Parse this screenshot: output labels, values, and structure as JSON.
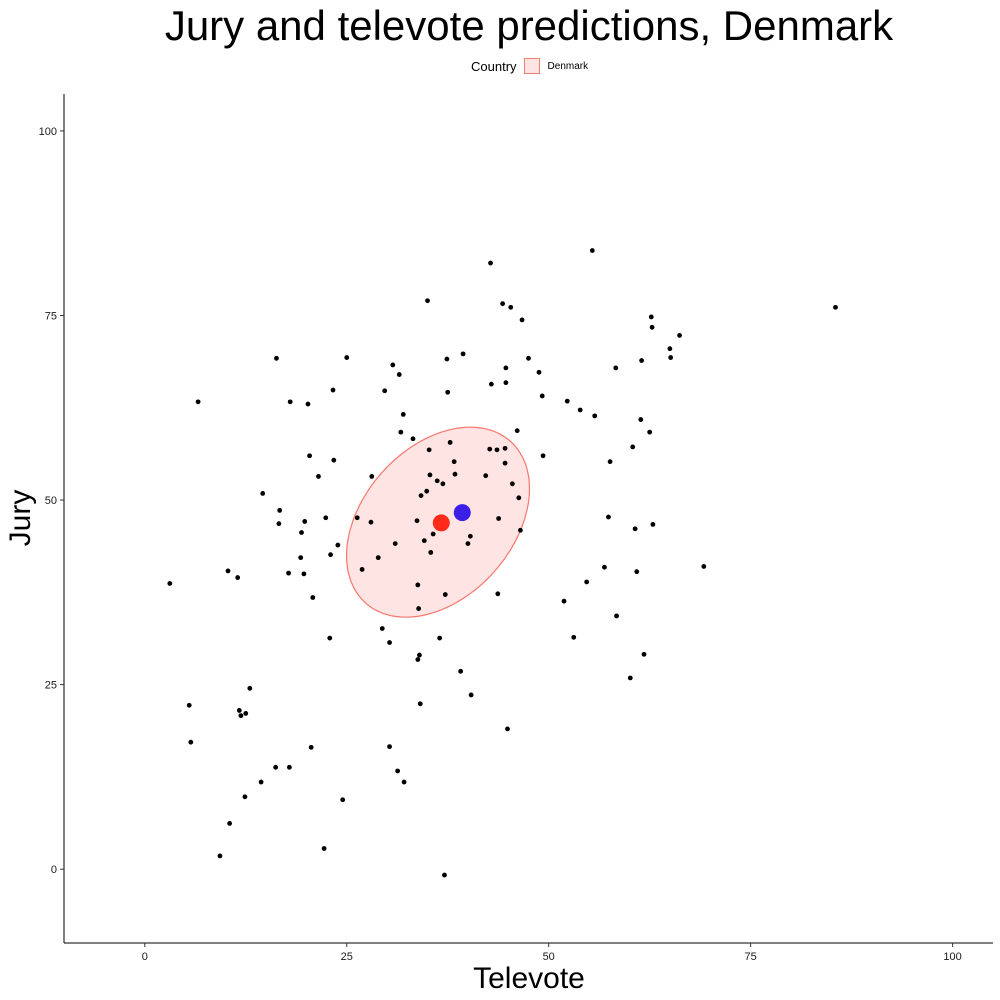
{
  "chart_data": {
    "type": "scatter",
    "title": "Jury and televote predictions, Denmark",
    "xlabel": "Televote",
    "ylabel": "Jury",
    "xlim": [
      -10,
      105
    ],
    "ylim": [
      -10,
      105
    ],
    "xticks": [
      "0",
      "25",
      "50",
      "75",
      "100"
    ],
    "yticks": [
      "0",
      "25",
      "50",
      "75",
      "100"
    ],
    "grid": false,
    "legend": {
      "title": "Country",
      "entries": [
        "Denmark"
      ],
      "position": "top"
    },
    "ellipse": {
      "series": "Denmark",
      "center": [
        36.3,
        47
      ],
      "semi_major": 14.2,
      "semi_minor": 9.6,
      "angle_deg": 55,
      "fill": "#F8766D"
    },
    "markers": [
      {
        "name": "red point",
        "x": 36.7,
        "y": 46.9,
        "color": "#FF2A1A"
      },
      {
        "name": "blue point",
        "x": 39.3,
        "y": 48.3,
        "color": "#3A1FE6"
      }
    ],
    "points": [
      [
        3.1,
        38.7
      ],
      [
        5.5,
        22.2
      ],
      [
        5.7,
        17.2
      ],
      [
        6.6,
        63.3
      ],
      [
        9.3,
        1.8
      ],
      [
        10.3,
        40.4
      ],
      [
        10.5,
        6.2
      ],
      [
        11.5,
        39.5
      ],
      [
        11.7,
        21.5
      ],
      [
        11.9,
        20.8
      ],
      [
        12.4,
        9.8
      ],
      [
        12.5,
        21.1
      ],
      [
        13.0,
        24.5
      ],
      [
        14.4,
        11.8
      ],
      [
        14.6,
        50.9
      ],
      [
        16.2,
        13.8
      ],
      [
        16.3,
        69.2
      ],
      [
        16.6,
        46.8
      ],
      [
        16.7,
        48.6
      ],
      [
        17.8,
        40.1
      ],
      [
        17.9,
        13.8
      ],
      [
        18.0,
        63.3
      ],
      [
        19.3,
        42.2
      ],
      [
        19.4,
        45.6
      ],
      [
        19.7,
        40.0
      ],
      [
        19.8,
        47.1
      ],
      [
        20.2,
        63.0
      ],
      [
        20.4,
        56.0
      ],
      [
        20.6,
        16.5
      ],
      [
        20.8,
        36.8
      ],
      [
        21.5,
        53.2
      ],
      [
        22.2,
        2.8
      ],
      [
        22.4,
        47.6
      ],
      [
        22.9,
        31.3
      ],
      [
        23.0,
        42.6
      ],
      [
        23.3,
        64.9
      ],
      [
        23.4,
        55.4
      ],
      [
        23.9,
        43.9
      ],
      [
        24.5,
        9.4
      ],
      [
        25.0,
        69.3
      ],
      [
        26.3,
        47.6
      ],
      [
        26.9,
        40.6
      ],
      [
        28.0,
        47.0
      ],
      [
        28.1,
        53.2
      ],
      [
        28.9,
        42.2
      ],
      [
        29.4,
        32.6
      ],
      [
        29.7,
        64.8
      ],
      [
        30.3,
        30.7
      ],
      [
        30.3,
        16.6
      ],
      [
        30.7,
        68.3
      ],
      [
        31.0,
        44.1
      ],
      [
        31.3,
        13.3
      ],
      [
        31.5,
        67.0
      ],
      [
        31.7,
        59.2
      ],
      [
        32.0,
        61.6
      ],
      [
        32.1,
        11.8
      ],
      [
        33.2,
        58.3
      ],
      [
        33.7,
        47.2
      ],
      [
        33.8,
        28.4
      ],
      [
        33.8,
        38.5
      ],
      [
        33.9,
        35.3
      ],
      [
        34.0,
        29.0
      ],
      [
        34.1,
        22.4
      ],
      [
        34.2,
        50.6
      ],
      [
        34.6,
        44.5
      ],
      [
        34.9,
        51.2
      ],
      [
        35.0,
        77.0
      ],
      [
        35.2,
        56.8
      ],
      [
        35.3,
        53.4
      ],
      [
        35.4,
        42.9
      ],
      [
        35.7,
        45.4
      ],
      [
        36.2,
        52.6
      ],
      [
        36.5,
        31.3
      ],
      [
        36.9,
        52.2
      ],
      [
        37.1,
        -0.8
      ],
      [
        37.2,
        37.2
      ],
      [
        37.4,
        69.1
      ],
      [
        37.5,
        64.6
      ],
      [
        37.8,
        57.8
      ],
      [
        38.3,
        55.2
      ],
      [
        38.4,
        53.5
      ],
      [
        39.1,
        26.8
      ],
      [
        39.4,
        69.8
      ],
      [
        40.0,
        44.1
      ],
      [
        40.3,
        45.1
      ],
      [
        40.4,
        23.6
      ],
      [
        42.2,
        53.3
      ],
      [
        42.7,
        56.9
      ],
      [
        42.8,
        82.1
      ],
      [
        42.9,
        65.7
      ],
      [
        43.6,
        56.8
      ],
      [
        43.7,
        37.3
      ],
      [
        43.8,
        47.5
      ],
      [
        44.3,
        76.6
      ],
      [
        44.6,
        57.0
      ],
      [
        44.6,
        55.0
      ],
      [
        44.7,
        67.9
      ],
      [
        44.7,
        65.9
      ],
      [
        44.9,
        19.0
      ],
      [
        45.3,
        76.1
      ],
      [
        45.5,
        52.2
      ],
      [
        46.1,
        59.4
      ],
      [
        46.3,
        50.3
      ],
      [
        46.5,
        45.9
      ],
      [
        46.7,
        74.4
      ],
      [
        47.5,
        69.2
      ],
      [
        48.8,
        67.3
      ],
      [
        49.2,
        64.1
      ],
      [
        49.3,
        56.0
      ],
      [
        51.9,
        36.3
      ],
      [
        52.3,
        63.4
      ],
      [
        53.1,
        31.4
      ],
      [
        53.9,
        62.2
      ],
      [
        54.7,
        38.9
      ],
      [
        55.4,
        83.8
      ],
      [
        55.7,
        61.4
      ],
      [
        56.9,
        40.9
      ],
      [
        57.4,
        47.7
      ],
      [
        57.6,
        55.2
      ],
      [
        58.3,
        67.9
      ],
      [
        58.4,
        34.3
      ],
      [
        60.1,
        25.9
      ],
      [
        60.4,
        57.2
      ],
      [
        60.7,
        46.1
      ],
      [
        60.9,
        40.3
      ],
      [
        61.4,
        60.9
      ],
      [
        61.5,
        68.9
      ],
      [
        61.8,
        29.1
      ],
      [
        62.5,
        59.2
      ],
      [
        62.7,
        74.8
      ],
      [
        62.8,
        73.4
      ],
      [
        62.9,
        46.7
      ],
      [
        65.0,
        70.5
      ],
      [
        65.1,
        69.3
      ],
      [
        66.2,
        72.3
      ],
      [
        69.2,
        41.0
      ],
      [
        85.5,
        76.1
      ]
    ]
  }
}
